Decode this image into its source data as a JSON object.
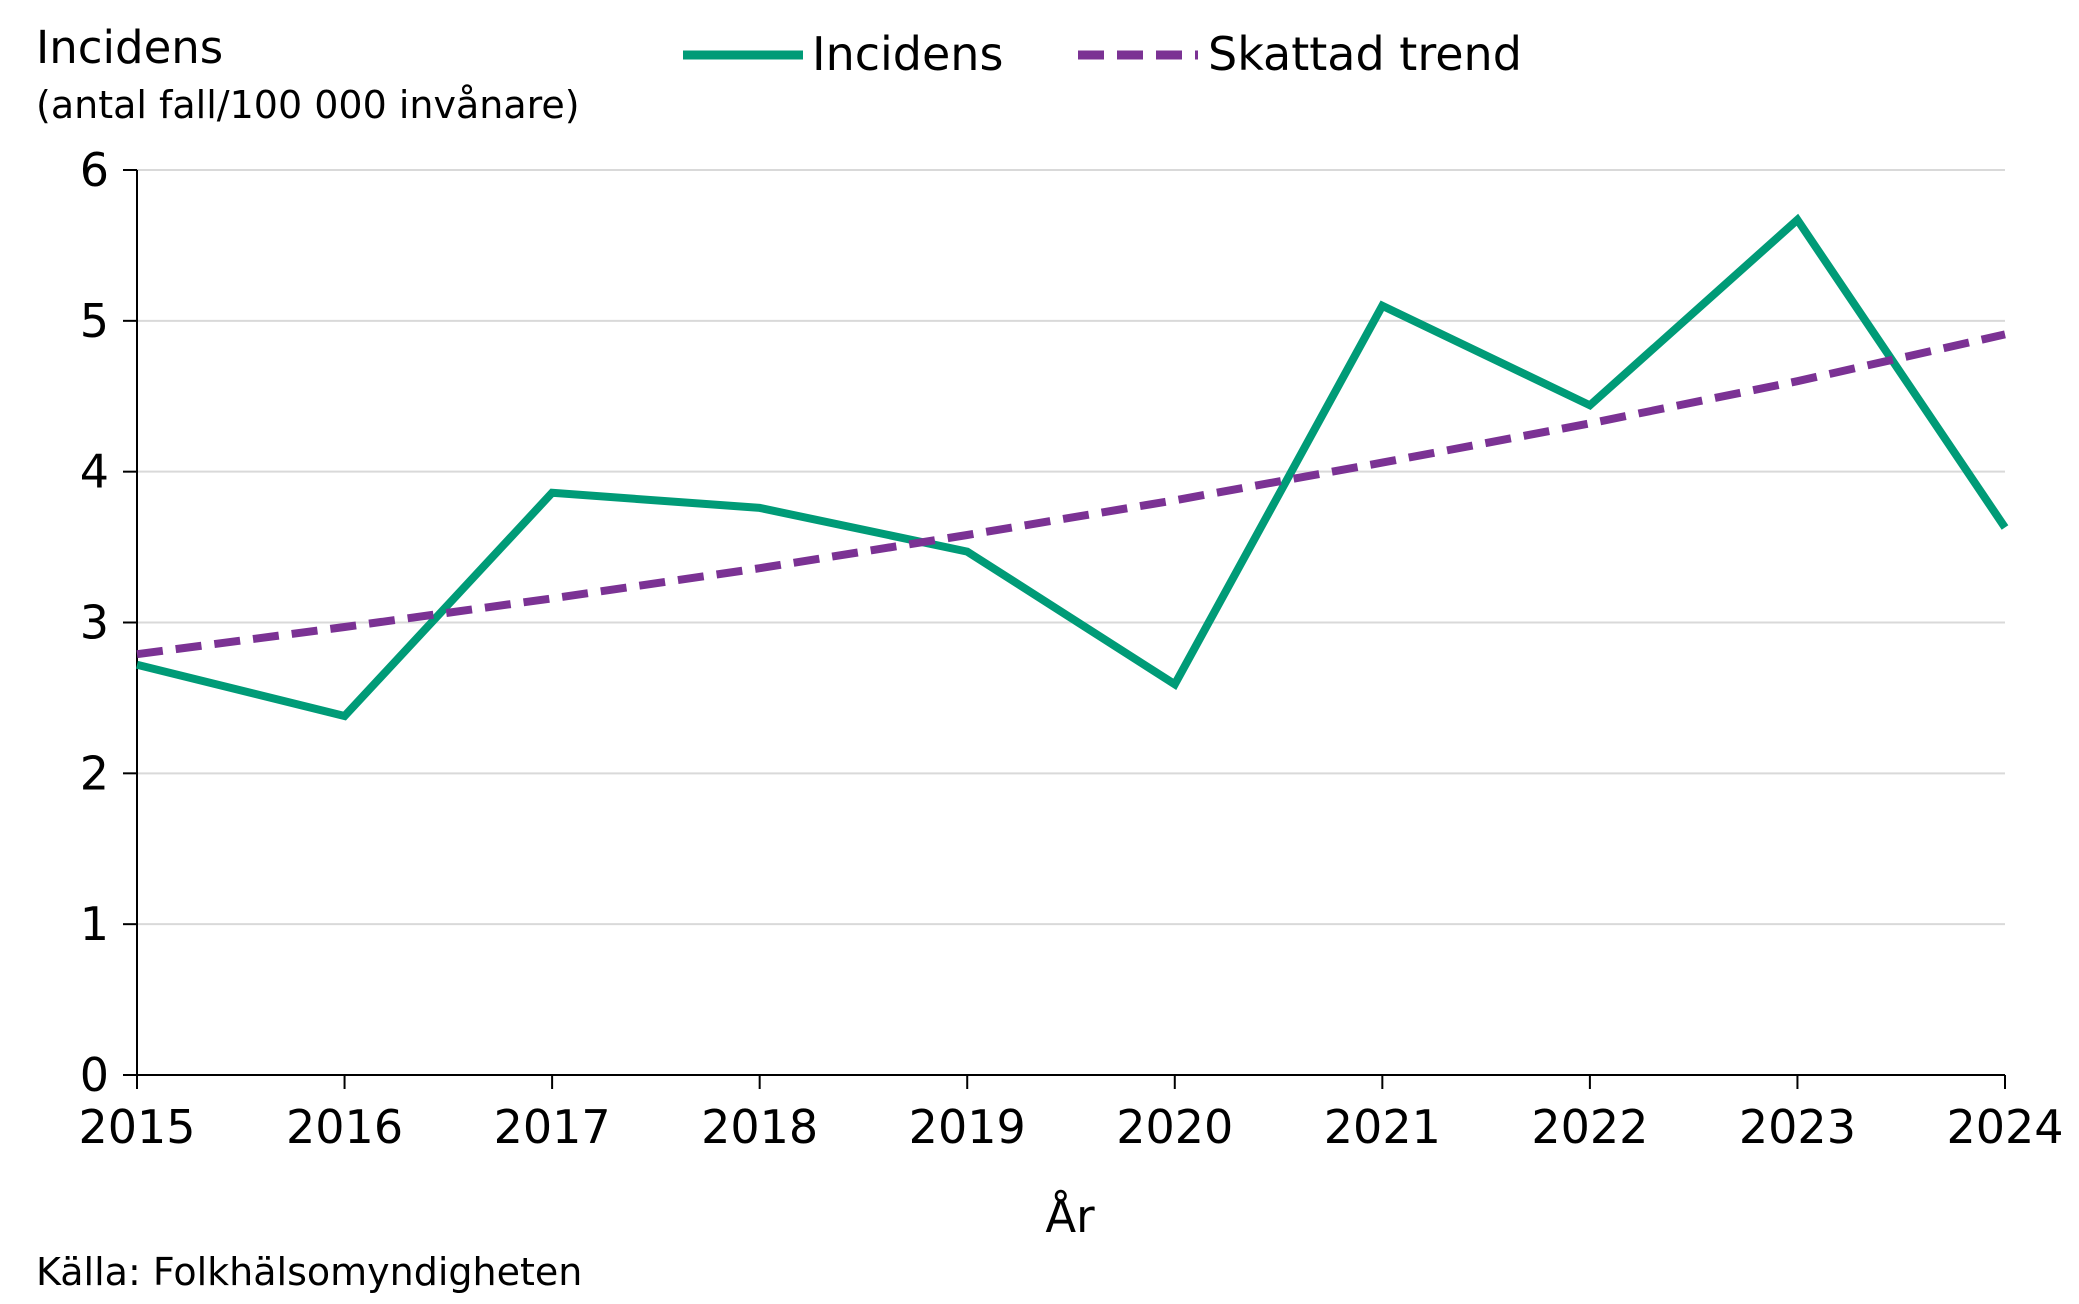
{
  "chart_data": {
    "type": "line",
    "ylabel": "Incidens",
    "ylabel_sub": "(antal fall/100 000 invånare)",
    "xlabel": "År",
    "source": "Källa: Folkhälsomyndigheten",
    "x": [
      "2015",
      "2016",
      "2017",
      "2018",
      "2019",
      "2020",
      "2021",
      "2022",
      "2023",
      "2024"
    ],
    "ylim": [
      0,
      6
    ],
    "yticks": [
      "0",
      "1",
      "2",
      "3",
      "4",
      "5",
      "6"
    ],
    "grid": true,
    "legend_position": "top-center",
    "series": [
      {
        "name": "Incidens",
        "style": "solid",
        "color": "#009B77",
        "values": [
          2.72,
          2.38,
          3.86,
          3.76,
          3.47,
          2.59,
          5.1,
          4.44,
          5.67,
          3.63
        ]
      },
      {
        "name": "Skattad trend",
        "style": "dashed",
        "color": "#7B3294",
        "values": [
          2.79,
          2.97,
          3.16,
          3.36,
          3.58,
          3.81,
          4.06,
          4.32,
          4.6,
          4.91
        ]
      }
    ]
  },
  "colors": {
    "grid": "#D9D9D9",
    "axis": "#000000"
  }
}
